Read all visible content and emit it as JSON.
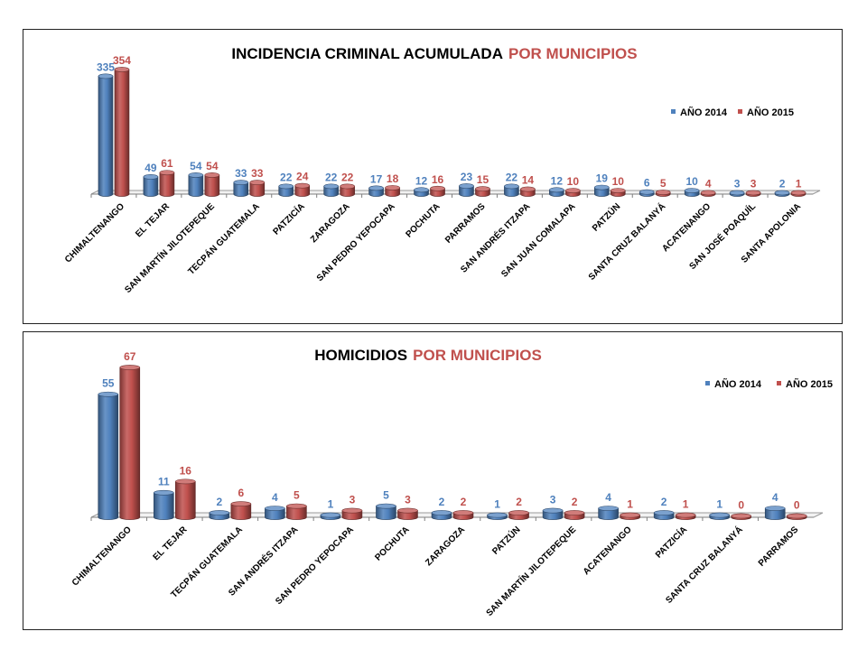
{
  "colors": {
    "y2014": "#4f81bd",
    "y2015": "#c0504d"
  },
  "chart_data": [
    {
      "type": "bar",
      "title_part1": "INCIDENCIA CRIMINAL ACUMULADA",
      "title_part2": "POR MUNICIPIOS",
      "legend_placement": "top-right",
      "ylim": [
        0,
        354
      ],
      "categories": [
        "CHIMALTENANGO",
        "EL TEJAR",
        "SAN MARTÍN JILOTEPEQUE",
        "TECPÁN GUATEMALA",
        "PATZICÍA",
        "ZARAGOZA",
        "SAN PEDRO YEPOCAPA",
        "POCHUTA",
        "PARRAMOS",
        "SAN ANDRÉS ITZAPA",
        "SAN JUAN COMALAPA",
        "PATZÚN",
        "SANTA CRUZ BALANYÁ",
        "ACATENANGO",
        "SAN JOSÉ POAQUÍL",
        "SANTA APOLONIA"
      ],
      "series": [
        {
          "name": "AÑO 2014",
          "values": [
            335,
            49,
            54,
            33,
            22,
            22,
            17,
            12,
            23,
            22,
            12,
            19,
            6,
            10,
            3,
            2
          ]
        },
        {
          "name": "AÑO 2015",
          "values": [
            354,
            61,
            54,
            33,
            24,
            22,
            18,
            16,
            15,
            14,
            10,
            10,
            5,
            4,
            3,
            1
          ]
        }
      ]
    },
    {
      "type": "bar",
      "title_part1": "HOMICIDIOS",
      "title_part2": "POR MUNICIPIOS",
      "legend_placement": "top-right",
      "ylim": [
        0,
        67
      ],
      "categories": [
        "CHIMALTENANGO",
        "EL TEJAR",
        "TECPÁN GUATEMALA",
        "SAN ANDRÉS ITZAPA",
        "SAN PEDRO YEPOCAPA",
        "POCHUTA",
        "ZARAGOZA",
        "PATZÚN",
        "SAN MARTÍN JILOTEPEQUE",
        "ACATENANGO",
        "PATZICÍA",
        "SANTA CRUZ BALANYÁ",
        "PARRAMOS"
      ],
      "series": [
        {
          "name": "AÑO 2014",
          "values": [
            55,
            11,
            2,
            4,
            1,
            5,
            2,
            1,
            3,
            4,
            2,
            1,
            4
          ]
        },
        {
          "name": "AÑO 2015",
          "values": [
            67,
            16,
            6,
            5,
            3,
            3,
            2,
            2,
            2,
            1,
            1,
            0,
            0
          ]
        }
      ]
    }
  ]
}
